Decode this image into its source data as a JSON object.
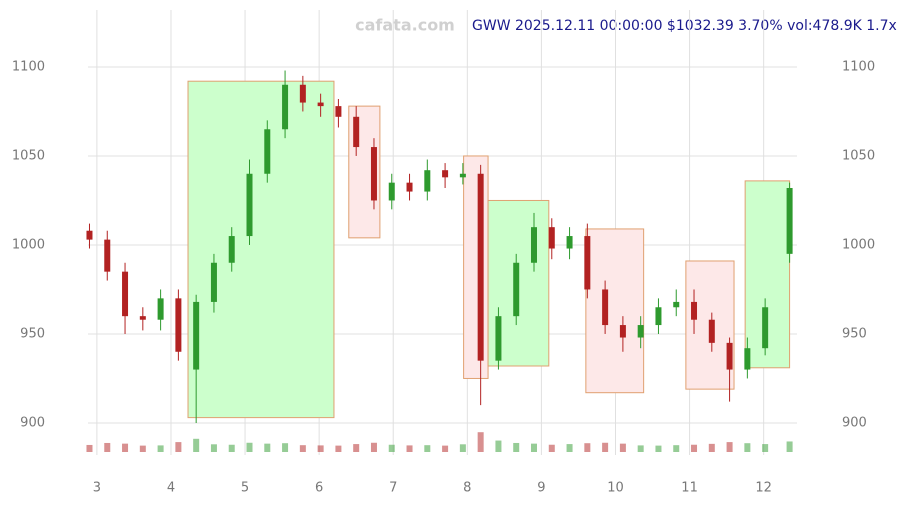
{
  "chart_data": {
    "type": "candlestick",
    "watermark": "cafata.com",
    "title": "GWW 2025.12.11 00:00:00 $1032.39 3.70% vol:478.9K 1.7x",
    "xlim": [
      2.88,
      12.45
    ],
    "xticks": [
      3,
      4,
      5,
      6,
      7,
      8,
      9,
      10,
      11,
      12
    ],
    "ylim": [
      882,
      1132
    ],
    "yticks": [
      900,
      950,
      1000,
      1050,
      1100
    ],
    "grid": true,
    "up_color": "#2e9a2e",
    "down_color": "#b22222",
    "x": [
      2.9,
      3.14,
      3.38,
      3.62,
      3.86,
      4.1,
      4.34,
      4.58,
      4.82,
      5.06,
      5.3,
      5.54,
      5.78,
      6.02,
      6.26,
      6.5,
      6.74,
      6.98,
      7.22,
      7.46,
      7.7,
      7.94,
      8.18,
      8.42,
      8.66,
      8.9,
      9.14,
      9.38,
      9.62,
      9.86,
      10.1,
      10.34,
      10.58,
      10.82,
      11.06,
      11.3,
      11.54,
      11.78,
      12.02,
      12.35
    ],
    "open": [
      1008,
      1003,
      985,
      960,
      958,
      970,
      930,
      968,
      990,
      1005,
      1040,
      1065,
      1090,
      1080,
      1078,
      1072,
      1055,
      1025,
      1035,
      1030,
      1042,
      1038,
      1040,
      935,
      960,
      990,
      1010,
      998,
      1005,
      975,
      955,
      948,
      955,
      965,
      968,
      958,
      945,
      930,
      942,
      995
    ],
    "high": [
      1012,
      1008,
      990,
      965,
      975,
      975,
      972,
      995,
      1010,
      1048,
      1070,
      1098,
      1095,
      1085,
      1082,
      1078,
      1060,
      1040,
      1040,
      1048,
      1046,
      1046,
      1045,
      965,
      995,
      1018,
      1015,
      1010,
      1012,
      980,
      960,
      960,
      970,
      975,
      975,
      962,
      948,
      948,
      970,
      1035
    ],
    "low": [
      998,
      980,
      950,
      952,
      952,
      935,
      900,
      962,
      985,
      1000,
      1035,
      1060,
      1075,
      1072,
      1066,
      1050,
      1020,
      1020,
      1025,
      1025,
      1032,
      1034,
      910,
      930,
      955,
      985,
      992,
      992,
      970,
      950,
      940,
      942,
      950,
      960,
      950,
      940,
      912,
      925,
      938,
      990
    ],
    "close": [
      1003,
      985,
      960,
      958,
      970,
      940,
      968,
      990,
      1005,
      1040,
      1065,
      1090,
      1080,
      1078,
      1072,
      1055,
      1025,
      1035,
      1030,
      1042,
      1038,
      1040,
      935,
      960,
      990,
      1010,
      998,
      1005,
      975,
      955,
      948,
      955,
      965,
      968,
      958,
      945,
      930,
      942,
      965,
      1032
    ],
    "volume": [
      320,
      410,
      380,
      290,
      300,
      450,
      600,
      350,
      330,
      420,
      380,
      400,
      310,
      300,
      290,
      360,
      420,
      330,
      300,
      310,
      290,
      350,
      900,
      520,
      410,
      380,
      330,
      360,
      400,
      420,
      380,
      300,
      290,
      310,
      330,
      370,
      450,
      400,
      360,
      479
    ],
    "vlim": [
      0,
      1000
    ],
    "zones": [
      {
        "x0": 4.23,
        "x1": 6.2,
        "y0": 903,
        "y1": 1092,
        "kind": "up"
      },
      {
        "x0": 6.4,
        "x1": 6.82,
        "y0": 1004,
        "y1": 1078,
        "kind": "down"
      },
      {
        "x0": 7.95,
        "x1": 8.28,
        "y0": 925,
        "y1": 1050,
        "kind": "down"
      },
      {
        "x0": 8.28,
        "x1": 9.1,
        "y0": 932,
        "y1": 1025,
        "kind": "up"
      },
      {
        "x0": 9.6,
        "x1": 10.38,
        "y0": 917,
        "y1": 1009,
        "kind": "down"
      },
      {
        "x0": 10.95,
        "x1": 11.6,
        "y0": 919,
        "y1": 991,
        "kind": "down"
      },
      {
        "x0": 11.75,
        "x1": 12.35,
        "y0": 931,
        "y1": 1036,
        "kind": "up"
      }
    ]
  }
}
